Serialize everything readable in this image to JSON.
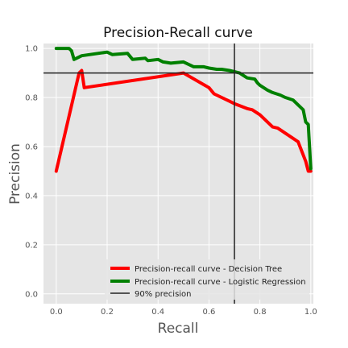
{
  "chart_data": {
    "type": "line",
    "title": "Precision-Recall curve",
    "xlabel": "Recall",
    "ylabel": "Precision",
    "xlim": [
      -0.05,
      1.01
    ],
    "ylim": [
      -0.04,
      1.02
    ],
    "xticks": [
      "0.0",
      "0.2",
      "0.4",
      "0.6",
      "0.8",
      "1.0"
    ],
    "yticks": [
      "0.0",
      "0.2",
      "0.4",
      "0.6",
      "0.8",
      "1.0"
    ],
    "grid": true,
    "legend_position": "lower-right",
    "series": [
      {
        "name": "Precision-recall curve - Decision Tree",
        "color": "#ff0000",
        "x": [
          0.0,
          0.09,
          0.1,
          0.11,
          0.5,
          0.6,
          0.62,
          0.68,
          0.7,
          0.75,
          0.77,
          0.8,
          0.85,
          0.87,
          0.95,
          0.98,
          0.99,
          1.0
        ],
        "y": [
          0.5,
          0.9,
          0.91,
          0.84,
          0.9,
          0.84,
          0.815,
          0.785,
          0.775,
          0.755,
          0.75,
          0.73,
          0.68,
          0.675,
          0.62,
          0.54,
          0.5,
          0.5
        ]
      },
      {
        "name": "Precision-recall curve - Logistic Regression",
        "color": "#008000",
        "x": [
          0.0,
          0.05,
          0.06,
          0.07,
          0.1,
          0.2,
          0.22,
          0.28,
          0.3,
          0.35,
          0.36,
          0.4,
          0.42,
          0.45,
          0.5,
          0.54,
          0.58,
          0.6,
          0.63,
          0.65,
          0.68,
          0.7,
          0.72,
          0.75,
          0.78,
          0.79,
          0.8,
          0.83,
          0.85,
          0.88,
          0.9,
          0.93,
          0.95,
          0.97,
          0.98,
          0.99,
          1.0
        ],
        "y": [
          1.0,
          1.0,
          0.99,
          0.955,
          0.97,
          0.985,
          0.975,
          0.98,
          0.955,
          0.96,
          0.95,
          0.955,
          0.945,
          0.94,
          0.945,
          0.925,
          0.925,
          0.92,
          0.915,
          0.915,
          0.91,
          0.905,
          0.9,
          0.88,
          0.875,
          0.86,
          0.85,
          0.83,
          0.82,
          0.81,
          0.8,
          0.79,
          0.77,
          0.75,
          0.7,
          0.69,
          0.51
        ]
      }
    ],
    "reference_lines": {
      "legend_label": "90% precision",
      "color": "#222222",
      "precision": 0.9,
      "recall": 0.7
    }
  }
}
